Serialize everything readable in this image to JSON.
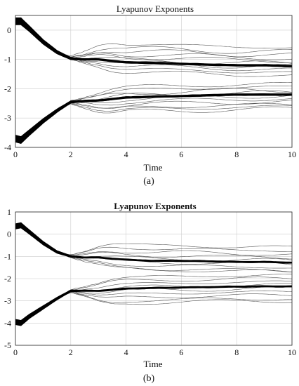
{
  "chart_data": [
    {
      "id": "a",
      "type": "line",
      "title": "Lyapunov Exponents",
      "title_bold": false,
      "panel_label": "(a)",
      "xlabel": "Time",
      "ylabel": "",
      "xlim": [
        0,
        10
      ],
      "ylim": [
        -4,
        0.5
      ],
      "xticks": [
        0,
        2,
        4,
        6,
        8,
        10
      ],
      "yticks": [
        0,
        -1,
        -2,
        -3,
        -4
      ],
      "grid": true,
      "line_color": "#000000",
      "grid_color": "#cccccc",
      "series": [
        {
          "role": "mean-upper",
          "x": [
            0,
            0.2,
            0.5,
            1,
            1.5,
            2,
            2.5,
            3,
            3.5,
            4,
            5,
            6,
            7,
            8,
            9,
            10
          ],
          "y": [
            0.3,
            0.3,
            0.05,
            -0.4,
            -0.75,
            -0.97,
            -1.0,
            -1.0,
            -1.05,
            -1.1,
            -1.12,
            -1.15,
            -1.18,
            -1.2,
            -1.2,
            -1.23
          ],
          "spread": [
            0.12,
            0.12,
            0.1,
            0.08,
            0.06,
            0.04,
            0.03,
            0.03,
            0.03,
            0.03,
            0.03,
            0.03,
            0.03,
            0.03,
            0.03,
            0.03
          ]
        },
        {
          "role": "mean-lower",
          "x": [
            0,
            0.2,
            0.5,
            1,
            1.5,
            2,
            2.5,
            3,
            3.5,
            4,
            5,
            6,
            7,
            8,
            9,
            10
          ],
          "y": [
            -3.7,
            -3.75,
            -3.5,
            -3.1,
            -2.75,
            -2.45,
            -2.42,
            -2.4,
            -2.35,
            -2.3,
            -2.27,
            -2.25,
            -2.22,
            -2.2,
            -2.2,
            -2.2
          ],
          "spread": [
            0.12,
            0.12,
            0.1,
            0.08,
            0.06,
            0.04,
            0.03,
            0.03,
            0.03,
            0.03,
            0.03,
            0.03,
            0.03,
            0.03,
            0.03,
            0.03
          ]
        }
      ],
      "upper_bundle_end": [
        -0.6,
        -0.75,
        -0.85,
        -0.95,
        -1.05,
        -1.15,
        -1.25,
        -1.35,
        -1.45,
        -1.55
      ],
      "lower_bundle_end": [
        -1.85,
        -1.95,
        -2.05,
        -2.15,
        -2.25,
        -2.35,
        -2.45,
        -2.55,
        -2.62,
        -2.7
      ]
    },
    {
      "id": "b",
      "type": "line",
      "title": "Lyapunov Exponents",
      "title_bold": true,
      "panel_label": "(b)",
      "xlabel": "Time",
      "ylabel": "",
      "xlim": [
        0,
        10
      ],
      "ylim": [
        -5,
        1
      ],
      "xticks": [
        0,
        2,
        4,
        6,
        8,
        10
      ],
      "yticks": [
        1,
        0,
        -1,
        -2,
        -3,
        -4,
        -5
      ],
      "grid": true,
      "line_color": "#000000",
      "grid_color": "#cccccc",
      "series": [
        {
          "role": "mean-upper",
          "x": [
            0,
            0.2,
            0.5,
            1,
            1.5,
            2,
            2.5,
            3,
            3.5,
            4,
            5,
            6,
            7,
            8,
            9,
            10
          ],
          "y": [
            0.35,
            0.4,
            0.1,
            -0.4,
            -0.8,
            -1.0,
            -1.05,
            -1.05,
            -1.1,
            -1.15,
            -1.2,
            -1.2,
            -1.22,
            -1.25,
            -1.25,
            -1.28
          ],
          "spread": [
            0.12,
            0.12,
            0.1,
            0.08,
            0.06,
            0.04,
            0.03,
            0.03,
            0.03,
            0.03,
            0.03,
            0.03,
            0.03,
            0.03,
            0.03,
            0.03
          ]
        },
        {
          "role": "mean-lower",
          "x": [
            0,
            0.2,
            0.5,
            1,
            1.5,
            2,
            2.5,
            3,
            3.5,
            4,
            5,
            6,
            7,
            8,
            9,
            10
          ],
          "y": [
            -3.95,
            -4.0,
            -3.7,
            -3.3,
            -2.9,
            -2.55,
            -2.55,
            -2.55,
            -2.5,
            -2.45,
            -2.42,
            -2.4,
            -2.38,
            -2.36,
            -2.35,
            -2.35
          ],
          "spread": [
            0.12,
            0.12,
            0.1,
            0.08,
            0.06,
            0.04,
            0.03,
            0.03,
            0.03,
            0.03,
            0.03,
            0.03,
            0.03,
            0.03,
            0.03,
            0.03
          ]
        }
      ],
      "upper_bundle_end": [
        -0.6,
        -0.75,
        -0.9,
        -1.05,
        -1.2,
        -1.35,
        -1.5,
        -1.65,
        -1.7
      ],
      "lower_bundle_end": [
        -1.85,
        -2.0,
        -2.15,
        -2.3,
        -2.45,
        -2.6,
        -2.75,
        -2.9,
        -3.0
      ]
    }
  ]
}
